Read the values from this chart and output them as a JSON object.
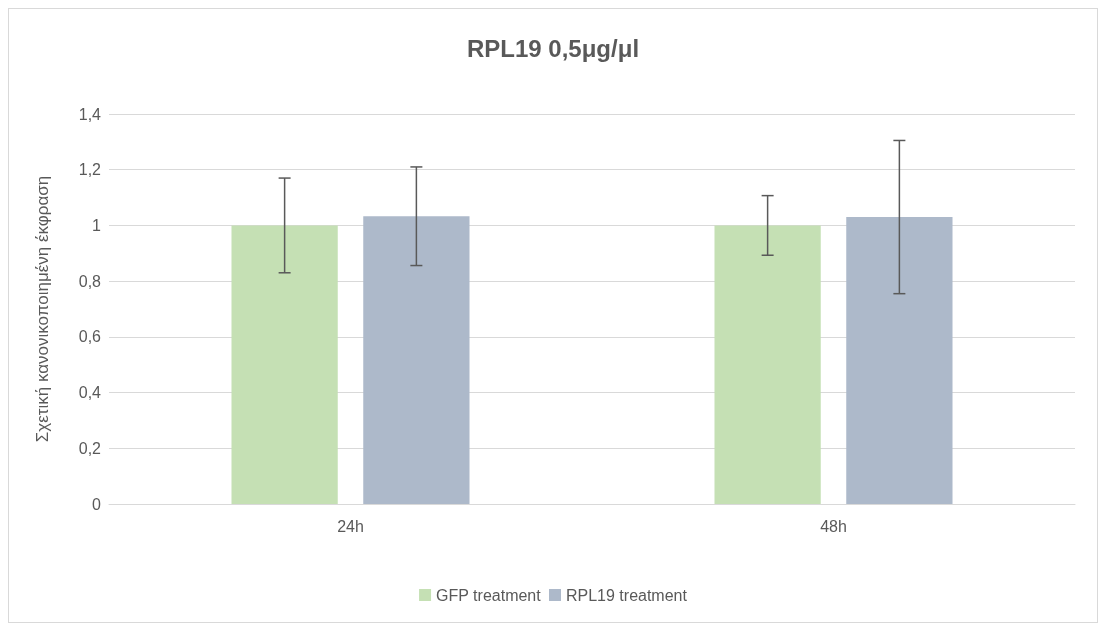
{
  "chart_data": {
    "type": "bar",
    "title": "RPL19 0,5μg/μl",
    "ylabel": "Σχετική κανονικοποιημένη έκφραση",
    "categories": [
      "24h",
      "48h"
    ],
    "series": [
      {
        "name": "GFP treatment",
        "color": "#c5e0b4",
        "values": [
          1,
          1
        ],
        "errors": [
          0.17,
          0.107
        ]
      },
      {
        "name": "RPL19 treatment",
        "color": "#adb9ca",
        "values": [
          1.033,
          1.03
        ],
        "errors": [
          0.177,
          0.275
        ]
      }
    ],
    "ylim": [
      0,
      1.4
    ],
    "yticks": [
      0,
      {
        "value": 0.2,
        "label": "0,2"
      },
      {
        "value": 0.4,
        "label": "0,4"
      },
      {
        "value": 0.6,
        "label": "0,6"
      },
      {
        "value": 0.8,
        "label": "0,8"
      },
      1,
      {
        "value": 1.2,
        "label": "1,2"
      },
      {
        "value": 1.4,
        "label": "1,4"
      }
    ],
    "grid": "y",
    "legend": "bottom"
  }
}
